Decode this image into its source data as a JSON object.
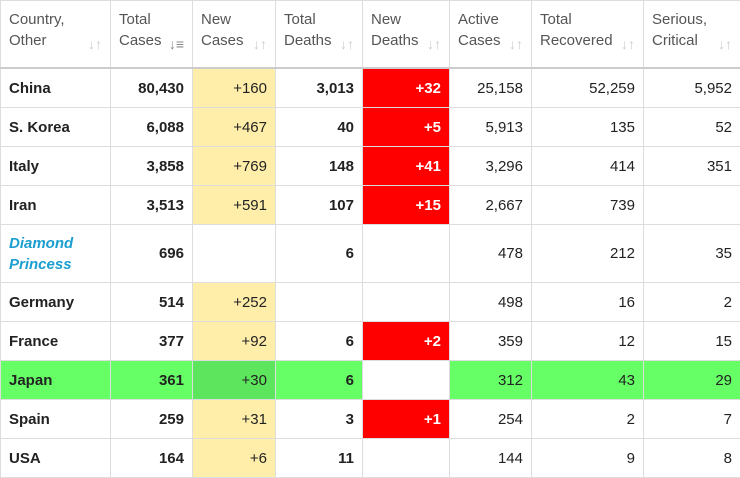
{
  "colors": {
    "new_cases_bg": "#ffeeaa",
    "new_deaths_bg": "#ff0000",
    "highlight_row": "#66ff66",
    "country_link": "#1a9fd0"
  },
  "headers": [
    {
      "l1": "Country,",
      "l2": "Other",
      "sort_icon": "sort-icon"
    },
    {
      "l1": "Total",
      "l2": "Cases",
      "sort_icon": "sort-desc-icon"
    },
    {
      "l1": "New",
      "l2": "Cases",
      "sort_icon": "sort-icon"
    },
    {
      "l1": "Total",
      "l2": "Deaths",
      "sort_icon": "sort-icon"
    },
    {
      "l1": "New",
      "l2": "Deaths",
      "sort_icon": "sort-icon"
    },
    {
      "l1": "Active",
      "l2": "Cases",
      "sort_icon": "sort-icon"
    },
    {
      "l1": "Total",
      "l2": "Recovered",
      "sort_icon": "sort-icon"
    },
    {
      "l1": "Serious,",
      "l2": "Critical",
      "sort_icon": "sort-icon"
    }
  ],
  "rows": [
    {
      "country": "China",
      "total_cases": "80,430",
      "new_cases": "+160",
      "total_deaths": "3,013",
      "new_deaths": "+32",
      "active": "25,158",
      "recovered": "52,259",
      "critical": "5,952"
    },
    {
      "country": "S. Korea",
      "total_cases": "6,088",
      "new_cases": "+467",
      "total_deaths": "40",
      "new_deaths": "+5",
      "active": "5,913",
      "recovered": "135",
      "critical": "52"
    },
    {
      "country": "Italy",
      "total_cases": "3,858",
      "new_cases": "+769",
      "total_deaths": "148",
      "new_deaths": "+41",
      "active": "3,296",
      "recovered": "414",
      "critical": "351"
    },
    {
      "country": "Iran",
      "total_cases": "3,513",
      "new_cases": "+591",
      "total_deaths": "107",
      "new_deaths": "+15",
      "active": "2,667",
      "recovered": "739",
      "critical": ""
    },
    {
      "country": "Diamond Princess",
      "total_cases": "696",
      "new_cases": "",
      "total_deaths": "6",
      "new_deaths": "",
      "active": "478",
      "recovered": "212",
      "critical": "35"
    },
    {
      "country": "Germany",
      "total_cases": "514",
      "new_cases": "+252",
      "total_deaths": "",
      "new_deaths": "",
      "active": "498",
      "recovered": "16",
      "critical": "2"
    },
    {
      "country": "France",
      "total_cases": "377",
      "new_cases": "+92",
      "total_deaths": "6",
      "new_deaths": "+2",
      "active": "359",
      "recovered": "12",
      "critical": "15"
    },
    {
      "country": "Japan",
      "total_cases": "361",
      "new_cases": "+30",
      "total_deaths": "6",
      "new_deaths": "",
      "active": "312",
      "recovered": "43",
      "critical": "29",
      "highlighted": true
    },
    {
      "country": "Spain",
      "total_cases": "259",
      "new_cases": "+31",
      "total_deaths": "3",
      "new_deaths": "+1",
      "active": "254",
      "recovered": "2",
      "critical": "7"
    },
    {
      "country": "USA",
      "total_cases": "164",
      "new_cases": "+6",
      "total_deaths": "11",
      "new_deaths": "",
      "active": "144",
      "recovered": "9",
      "critical": "8"
    }
  ]
}
